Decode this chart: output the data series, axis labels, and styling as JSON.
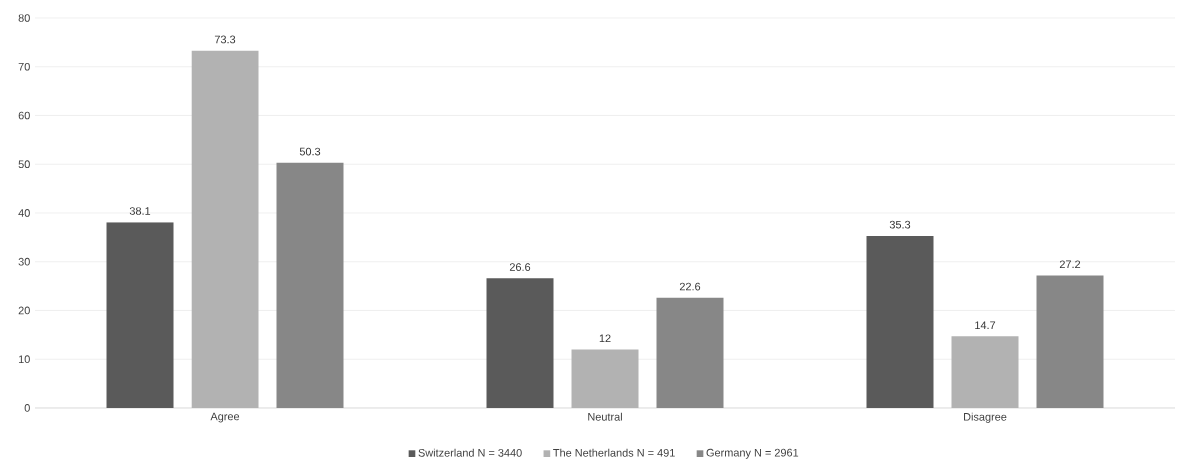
{
  "chart_data": {
    "type": "bar",
    "categories": [
      "Agree",
      "Neutral",
      "Disagree"
    ],
    "series": [
      {
        "name": "Switzerland N = 3440",
        "color": "#5a5a5a",
        "values": [
          38.1,
          26.6,
          35.3
        ]
      },
      {
        "name": "The Netherlands N = 491",
        "color": "#b2b2b2",
        "values": [
          73.3,
          12,
          14.7
        ]
      },
      {
        "name": "Germany N = 2961",
        "color": "#878787",
        "values": [
          50.3,
          22.6,
          27.2
        ]
      }
    ],
    "ylim": [
      0,
      80
    ],
    "yticks": [
      0,
      10,
      20,
      30,
      40,
      50,
      60,
      70,
      80
    ],
    "grid": "y",
    "legend": "bottom",
    "data_labels": true
  }
}
